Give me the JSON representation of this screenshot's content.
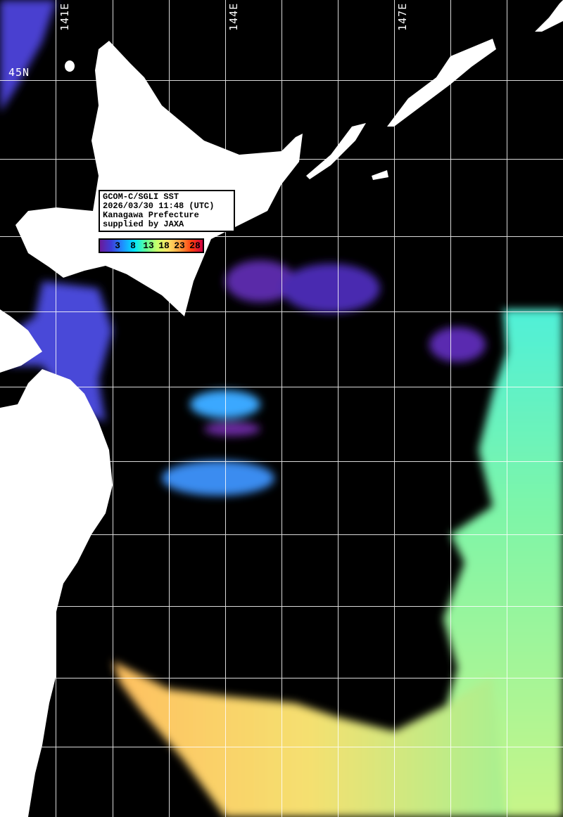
{
  "title_box": {
    "line1": "GCOM-C/SGLI SST",
    "line2": "2026/03/30 11:48 (UTC)",
    "line3": "Kanagawa Prefecture",
    "line4": "supplied by JAXA"
  },
  "colorbar": {
    "ticks": [
      "3",
      "8",
      "13",
      "18",
      "23",
      "28"
    ],
    "colors": [
      "#6a1b9a",
      "#3d3dd8",
      "#1e90ff",
      "#00e5ff",
      "#5dff9a",
      "#c8ff6a",
      "#ffe066",
      "#ffa040",
      "#ff4010",
      "#d00040"
    ]
  },
  "grid_labels": {
    "lon": [
      "141E",
      "144E",
      "147E"
    ],
    "lat": [
      "45N"
    ]
  },
  "colors": {
    "land": "#ffffff",
    "no_data": "#000000",
    "grid": "#ffffff"
  }
}
